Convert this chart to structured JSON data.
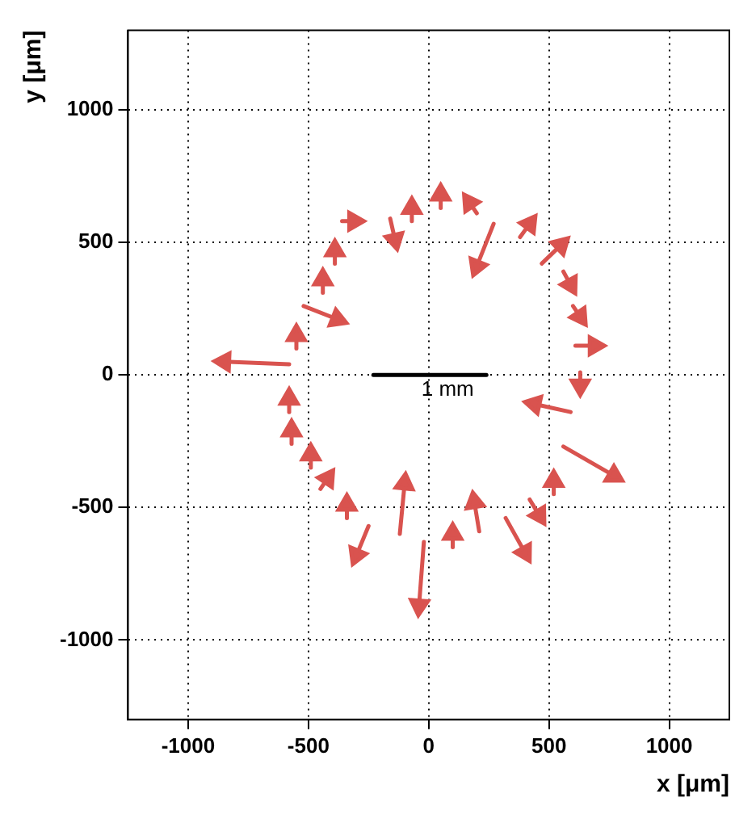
{
  "chart_data": {
    "type": "line",
    "xlabel": "x [μm]",
    "ylabel": "y [μm]",
    "xlim": [
      -1250,
      1250
    ],
    "ylim": [
      -1300,
      1300
    ],
    "xticks": [
      -1000,
      -500,
      0,
      500,
      1000
    ],
    "yticks": [
      -1000,
      -500,
      0,
      500,
      1000
    ],
    "grid": true,
    "legend": false,
    "marker": "triangle",
    "line_style": "solid",
    "series": [
      {
        "color": "#d9534f",
        "x": [
          -580,
          -850
        ],
        "values": [
          40,
          50
        ]
      },
      {
        "color": "#d9534f",
        "x": [
          -520,
          -380
        ],
        "values": [
          260,
          210
        ]
      },
      {
        "color": "#d9534f",
        "x": [
          -550,
          -550
        ],
        "values": [
          100,
          150
        ]
      },
      {
        "color": "#d9534f",
        "x": [
          -440,
          -440
        ],
        "values": [
          310,
          360
        ]
      },
      {
        "color": "#d9534f",
        "x": [
          -390,
          -390
        ],
        "values": [
          420,
          470
        ]
      },
      {
        "color": "#d9534f",
        "x": [
          -360,
          -310
        ],
        "values": [
          580,
          580
        ]
      },
      {
        "color": "#d9534f",
        "x": [
          -160,
          -140
        ],
        "values": [
          590,
          510
        ]
      },
      {
        "color": "#d9534f",
        "x": [
          -70,
          -70
        ],
        "values": [
          580,
          630
        ]
      },
      {
        "color": "#d9534f",
        "x": [
          50,
          50
        ],
        "values": [
          630,
          680
        ]
      },
      {
        "color": "#d9534f",
        "x": [
          200,
          170
        ],
        "values": [
          610,
          650
        ]
      },
      {
        "color": "#d9534f",
        "x": [
          270,
          200
        ],
        "values": [
          570,
          410
        ]
      },
      {
        "color": "#d9534f",
        "x": [
          380,
          420
        ],
        "values": [
          520,
          570
        ]
      },
      {
        "color": "#d9534f",
        "x": [
          470,
          550
        ],
        "values": [
          420,
          490
        ]
      },
      {
        "color": "#d9534f",
        "x": [
          560,
          590
        ],
        "values": [
          390,
          340
        ]
      },
      {
        "color": "#d9534f",
        "x": [
          600,
          630
        ],
        "values": [
          260,
          220
        ]
      },
      {
        "color": "#d9534f",
        "x": [
          610,
          690
        ],
        "values": [
          110,
          110
        ]
      },
      {
        "color": "#d9534f",
        "x": [
          630,
          630
        ],
        "values": [
          10,
          -40
        ]
      },
      {
        "color": "#d9534f",
        "x": [
          590,
          440
        ],
        "values": [
          -140,
          -110
        ]
      },
      {
        "color": "#d9534f",
        "x": [
          560,
          770
        ],
        "values": [
          -270,
          -380
        ]
      },
      {
        "color": "#d9534f",
        "x": [
          520,
          520
        ],
        "values": [
          -450,
          -400
        ]
      },
      {
        "color": "#d9534f",
        "x": [
          420,
          460
        ],
        "values": [
          -470,
          -530
        ]
      },
      {
        "color": "#d9534f",
        "x": [
          320,
          400
        ],
        "values": [
          -540,
          -670
        ]
      },
      {
        "color": "#d9534f",
        "x": [
          210,
          190
        ],
        "values": [
          -590,
          -480
        ]
      },
      {
        "color": "#d9534f",
        "x": [
          100,
          100
        ],
        "values": [
          -650,
          -600
        ]
      },
      {
        "color": "#d9534f",
        "x": [
          -20,
          -40
        ],
        "values": [
          -630,
          -870
        ]
      },
      {
        "color": "#d9534f",
        "x": [
          -120,
          -100
        ],
        "values": [
          -600,
          -410
        ]
      },
      {
        "color": "#d9534f",
        "x": [
          -250,
          -300
        ],
        "values": [
          -570,
          -680
        ]
      },
      {
        "color": "#d9534f",
        "x": [
          -340,
          -340
        ],
        "values": [
          -540,
          -490
        ]
      },
      {
        "color": "#d9534f",
        "x": [
          -450,
          -420
        ],
        "values": [
          -430,
          -390
        ]
      },
      {
        "color": "#d9534f",
        "x": [
          -490,
          -490
        ],
        "values": [
          -350,
          -300
        ]
      },
      {
        "color": "#d9534f",
        "x": [
          -570,
          -570
        ],
        "values": [
          -260,
          -210
        ]
      },
      {
        "color": "#d9534f",
        "x": [
          -580,
          -580
        ],
        "values": [
          -140,
          -90
        ]
      },
      {
        "name": "1 mm",
        "color": "#000000",
        "marker": "none",
        "x": [
          -230,
          240
        ],
        "values": [
          0,
          0
        ]
      }
    ]
  }
}
